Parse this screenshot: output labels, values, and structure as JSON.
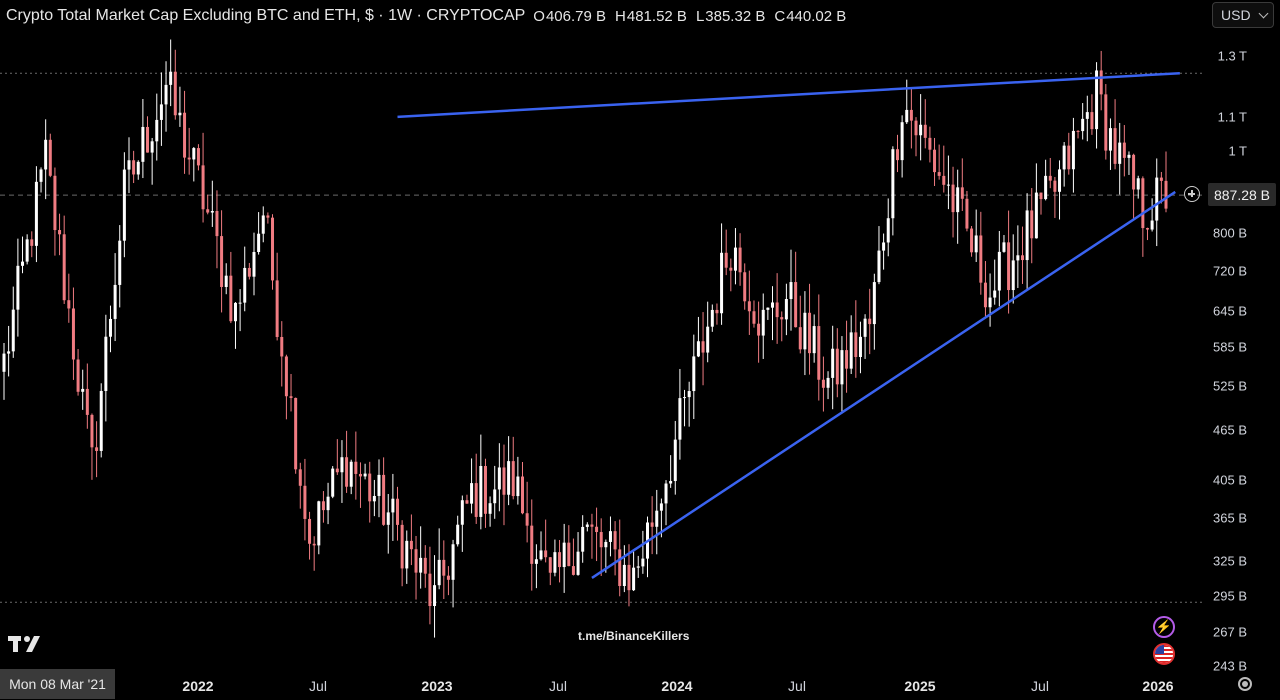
{
  "header": {
    "symbol_title": "Crypto Total Market Cap Excluding BTC and ETH, $ · 1W · CRYPTOCAP",
    "ohlc": [
      {
        "key": "O",
        "value": "406.79 B"
      },
      {
        "key": "H",
        "value": "481.52 B"
      },
      {
        "key": "L",
        "value": "385.32 B"
      },
      {
        "key": "C",
        "value": "440.02 B"
      }
    ],
    "currency": "USD"
  },
  "price_axis": {
    "ticks": [
      "1.3 T",
      "1.1 T",
      "1 T",
      "800 B",
      "720 B",
      "645 B",
      "585 B",
      "525 B",
      "465 B",
      "405 B",
      "365 B",
      "325 B",
      "295 B",
      "267 B",
      "243 B"
    ],
    "current_price_label": "887.28 B"
  },
  "time_axis": {
    "cursor_label": "Mon 08 Mar '21",
    "ticks": [
      {
        "label": "2022",
        "kind": "year"
      },
      {
        "label": "Jul",
        "kind": "month"
      },
      {
        "label": "2023",
        "kind": "year"
      },
      {
        "label": "Jul",
        "kind": "month"
      },
      {
        "label": "2024",
        "kind": "year"
      },
      {
        "label": "Jul",
        "kind": "month"
      },
      {
        "label": "2025",
        "kind": "year"
      },
      {
        "label": "Jul",
        "kind": "month"
      },
      {
        "label": "2026",
        "kind": "year"
      }
    ]
  },
  "watermark": "t.me/BinanceKillers",
  "colors": {
    "up": "#ffffff",
    "down": "#f07c82",
    "trendline": "#3a63f0",
    "background": "#000000"
  },
  "icons": [
    "tradingview-logo-icon",
    "plus-circle-icon",
    "bolt-icon",
    "us-flag-icon",
    "gear-icon"
  ],
  "chart_data": {
    "type": "candlestick",
    "timeframe": "1W",
    "scale": "log",
    "x_range": [
      "2021-03-08",
      "2025-12-29"
    ],
    "y_unit": "USD",
    "y_range": [
      243000000000,
      1300000000000
    ],
    "current_price": 887280000000,
    "anchors": [
      {
        "date": "2021-03-08",
        "close": 560000000000.0
      },
      {
        "date": "2021-05-10",
        "close": 980000000000.0
      },
      {
        "date": "2021-07-19",
        "close": 420000000000.0
      },
      {
        "date": "2021-09-06",
        "close": 890000000000.0
      },
      {
        "date": "2021-11-08",
        "close": 1200000000000.0
      },
      {
        "date": "2022-01-03",
        "close": 880000000000.0
      },
      {
        "date": "2022-02-21",
        "close": 640000000000.0
      },
      {
        "date": "2022-04-04",
        "close": 850000000000.0
      },
      {
        "date": "2022-06-13",
        "close": 345000000000.0
      },
      {
        "date": "2022-08-08",
        "close": 430000000000.0
      },
      {
        "date": "2022-10-10",
        "close": 370000000000.0
      },
      {
        "date": "2022-12-19",
        "close": 290000000000.0
      },
      {
        "date": "2023-02-13",
        "close": 390000000000.0
      },
      {
        "date": "2023-04-17",
        "close": 405000000000.0
      },
      {
        "date": "2023-06-12",
        "close": 300000000000.0
      },
      {
        "date": "2023-07-31",
        "close": 355000000000.0
      },
      {
        "date": "2023-10-16",
        "close": 310000000000.0
      },
      {
        "date": "2023-12-11",
        "close": 430000000000.0
      },
      {
        "date": "2024-03-11",
        "close": 780000000000.0
      },
      {
        "date": "2024-04-29",
        "close": 620000000000.0
      },
      {
        "date": "2024-06-03",
        "close": 670000000000.0
      },
      {
        "date": "2024-08-05",
        "close": 530000000000.0
      },
      {
        "date": "2024-10-07",
        "close": 620000000000.0
      },
      {
        "date": "2024-11-25",
        "close": 1150000000000.0
      },
      {
        "date": "2025-02-03",
        "close": 900000000000.0
      },
      {
        "date": "2025-04-07",
        "close": 680000000000.0
      },
      {
        "date": "2025-07-14",
        "close": 900000000000.0
      },
      {
        "date": "2025-09-15",
        "close": 1170000000000.0
      },
      {
        "date": "2025-10-13",
        "close": 1000000000000.0
      },
      {
        "date": "2025-11-24",
        "close": 850000000000.0
      },
      {
        "date": "2025-12-29",
        "close": 887000000000.0
      }
    ],
    "trendlines": [
      {
        "name": "upper",
        "points": [
          {
            "date": "2022-10-24",
            "value": 1100000000000.0
          },
          {
            "date": "2026-01-19",
            "value": 1240000000000.0
          }
        ]
      },
      {
        "name": "lower",
        "points": [
          {
            "date": "2023-08-14",
            "value": 310000000000.0
          },
          {
            "date": "2026-01-12",
            "value": 895000000000.0
          }
        ]
      }
    ],
    "reference_lines": [
      {
        "name": "ath-dotted",
        "value": 1240000000000.0
      },
      {
        "name": "last-price-dashed",
        "value": 887000000000.0
      },
      {
        "name": "low-dotted",
        "value": 290000000000.0
      }
    ]
  }
}
